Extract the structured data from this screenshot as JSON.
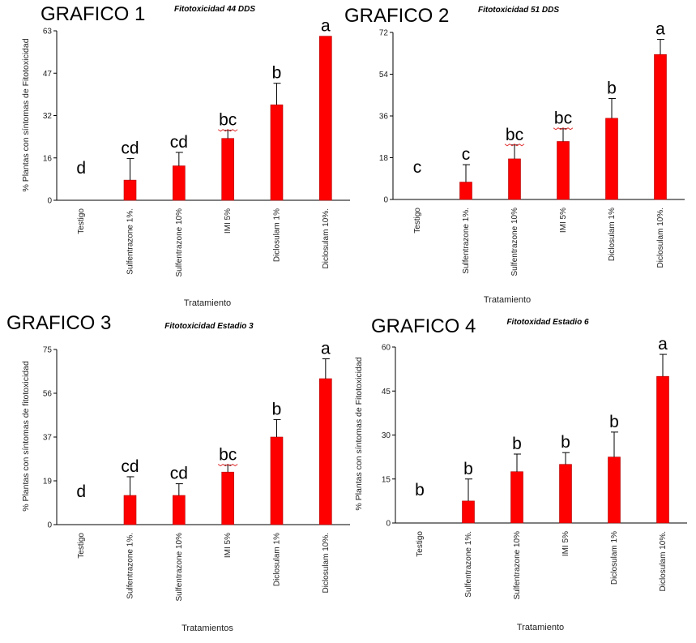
{
  "colors": {
    "bar": "#ff0000",
    "bar_stroke": "#b00000",
    "axis": "#000000",
    "squiggle": "#e03030"
  },
  "chart_data": [
    {
      "type": "bar",
      "panel_label": "GRAFICO 1",
      "title": "Fitotoxicidad 44 DDS",
      "xlabel": "Tratamiento",
      "ylabel": "% Plantas con síntomas de Fitotoxicidad",
      "ylim": [
        0,
        63
      ],
      "yticks": [
        "0",
        "16",
        "32",
        "47",
        "63"
      ],
      "categories": [
        "Testigo",
        "Sulfentrazone 1%.",
        "Sulfentrazone 10%",
        "IMI 5%",
        "Diclosulam 1%",
        "Diclosulam 10%."
      ],
      "values": [
        0,
        7.5,
        12.8,
        23,
        35.5,
        61
      ],
      "errors": [
        0,
        8,
        5,
        3,
        8,
        0
      ],
      "letters": [
        "d",
        "cd",
        "cd",
        "bc",
        "b",
        "a"
      ]
    },
    {
      "type": "bar",
      "panel_label": "GRAFICO 2",
      "title": "Fitotoxicidad 51 DDS",
      "xlabel": "Tratamiento",
      "ylabel": "",
      "ylim": [
        0,
        72
      ],
      "yticks": [
        "0",
        "18",
        "36",
        "54",
        "72"
      ],
      "categories": [
        "Testigo",
        "Sulfentrazone 1%.",
        "Sulfentrazone 10%",
        "IMI 5%",
        "Diclosulam 1%",
        "Diclosulam 10%."
      ],
      "values": [
        0,
        7.5,
        17.5,
        25,
        35,
        62.5
      ],
      "errors": [
        0,
        7.5,
        6,
        5.5,
        8.5,
        6.5
      ],
      "letters": [
        "c",
        "c",
        "bc",
        "bc",
        "b",
        "a"
      ]
    },
    {
      "type": "bar",
      "panel_label": "GRAFICO 3",
      "title": "Fitotoxicidad Estadio 3",
      "xlabel": "Tratamientos",
      "ylabel": "% Plantas con síntomas de fitotoxicidad",
      "ylim": [
        0,
        75
      ],
      "yticks": [
        "0",
        "19",
        "37",
        "56",
        "75"
      ],
      "categories": [
        "Testigo",
        "Sulfentrazone 1%.",
        "Sulfentrazone 10%",
        "IMI 5%",
        "Diclosulam 1%",
        "Diclosulam 10%."
      ],
      "values": [
        0,
        12.5,
        12.5,
        22.5,
        37.5,
        62.5
      ],
      "errors": [
        0,
        8,
        5,
        3,
        7.5,
        8.5
      ],
      "letters": [
        "d",
        "cd",
        "cd",
        "bc",
        "b",
        "a"
      ]
    },
    {
      "type": "bar",
      "panel_label": "GRAFICO 4",
      "title": "Fitotoxidad Estadio 6",
      "xlabel": "Tratamiento",
      "ylabel": "% Plantas con síntomas de Fitotoxicidad",
      "ylim": [
        0,
        60
      ],
      "yticks": [
        "0",
        "15",
        "30",
        "45",
        "60"
      ],
      "categories": [
        "Testigo",
        "Sulfentrazone 1%.",
        "Sulfentrazone 10%",
        "IMI 5%",
        "Diclosulam 1%",
        "Diclosulam 10%."
      ],
      "values": [
        0,
        7.5,
        17.5,
        20,
        22.5,
        50
      ],
      "errors": [
        0,
        7.5,
        6,
        4,
        8.5,
        7.5
      ],
      "letters": [
        "b",
        "b",
        "b",
        "b",
        "b",
        "a"
      ]
    }
  ]
}
